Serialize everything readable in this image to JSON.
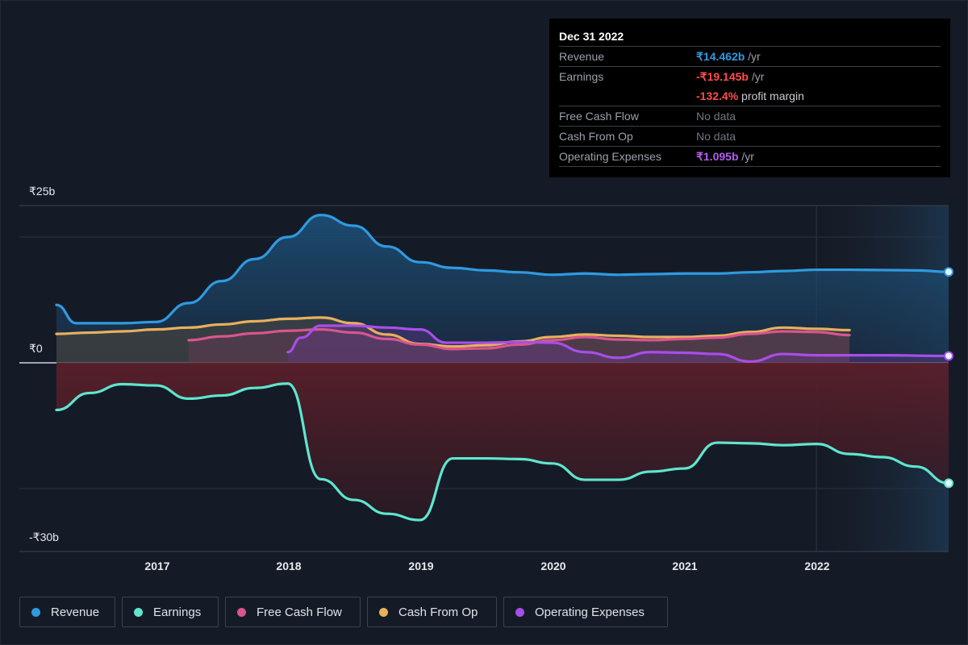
{
  "tooltip": {
    "date": "Dec 31 2022",
    "revenue_label": "Revenue",
    "revenue_value": "₹14.462b",
    "revenue_unit": " /yr",
    "earnings_label": "Earnings",
    "earnings_value": "-₹19.145b",
    "earnings_unit": " /yr",
    "margin_value": "-132.4%",
    "margin_text": " profit margin",
    "fcf_label": "Free Cash Flow",
    "fcf_value": "No data",
    "cfo_label": "Cash From Op",
    "cfo_value": "No data",
    "opex_label": "Operating Expenses",
    "opex_value": "₹1.095b",
    "opex_unit": " /yr"
  },
  "legend": {
    "revenue": "Revenue",
    "earnings": "Earnings",
    "fcf": "Free Cash Flow",
    "cfo": "Cash From Op",
    "opex": "Operating Expenses"
  },
  "colors": {
    "revenue": "#2f9ae0",
    "earnings": "#5ee6cf",
    "fcf": "#d9558e",
    "cfo": "#e8b05c",
    "opex": "#a84ee8",
    "revenue_text": "#2f9ae0",
    "negative_text": "#ff4d4d",
    "opex_text": "#b45cf0"
  },
  "chart_data": {
    "type": "line",
    "ylabels": [
      "₹25b",
      "₹0",
      "-₹30b"
    ],
    "xticks": [
      "2017",
      "2018",
      "2019",
      "2020",
      "2021",
      "2022"
    ],
    "ylim": [
      -30,
      25
    ],
    "xlim": [
      2016.25,
      2023.0
    ],
    "forecast_from": 2022.0,
    "series": [
      {
        "name": "Revenue",
        "key": "revenue",
        "points": [
          [
            2016.25,
            9.2
          ],
          [
            2016.4,
            6.3
          ],
          [
            2016.75,
            6.3
          ],
          [
            2017.0,
            6.5
          ],
          [
            2017.25,
            9.5
          ],
          [
            2017.5,
            13
          ],
          [
            2017.75,
            16.5
          ],
          [
            2018.0,
            20
          ],
          [
            2018.25,
            23.5
          ],
          [
            2018.5,
            21.8
          ],
          [
            2018.75,
            18.5
          ],
          [
            2019.0,
            16
          ],
          [
            2019.25,
            15.1
          ],
          [
            2019.5,
            14.7
          ],
          [
            2019.75,
            14.4
          ],
          [
            2020.0,
            14
          ],
          [
            2020.25,
            14.2
          ],
          [
            2020.5,
            14
          ],
          [
            2020.75,
            14.1
          ],
          [
            2021.0,
            14.2
          ],
          [
            2021.25,
            14.2
          ],
          [
            2021.5,
            14.4
          ],
          [
            2021.75,
            14.6
          ],
          [
            2022.0,
            14.8
          ],
          [
            2022.25,
            14.8
          ],
          [
            2022.5,
            14.75
          ],
          [
            2022.75,
            14.7
          ],
          [
            2023.0,
            14.462
          ]
        ]
      },
      {
        "name": "Earnings",
        "key": "earnings",
        "points": [
          [
            2016.25,
            -7.5
          ],
          [
            2016.5,
            -4.8
          ],
          [
            2016.75,
            -3.4
          ],
          [
            2017.0,
            -3.6
          ],
          [
            2017.25,
            -5.7
          ],
          [
            2017.5,
            -5.2
          ],
          [
            2017.75,
            -4
          ],
          [
            2018.0,
            -3.3
          ],
          [
            2018.25,
            -18.5
          ],
          [
            2018.5,
            -21.8
          ],
          [
            2018.75,
            -24
          ],
          [
            2019.0,
            -25
          ],
          [
            2019.25,
            -15.2
          ],
          [
            2019.5,
            -15.2
          ],
          [
            2019.75,
            -15.3
          ],
          [
            2020.0,
            -16
          ],
          [
            2020.25,
            -18.6
          ],
          [
            2020.5,
            -18.6
          ],
          [
            2020.75,
            -17.3
          ],
          [
            2021.0,
            -16.8
          ],
          [
            2021.25,
            -12.7
          ],
          [
            2021.5,
            -12.8
          ],
          [
            2021.75,
            -13.1
          ],
          [
            2022.0,
            -12.9
          ],
          [
            2022.25,
            -14.5
          ],
          [
            2022.5,
            -15
          ],
          [
            2022.75,
            -16.5
          ],
          [
            2023.0,
            -19.145
          ]
        ]
      },
      {
        "name": "Free Cash Flow",
        "key": "fcf",
        "points": [
          [
            2017.25,
            3.6
          ],
          [
            2017.5,
            4.2
          ],
          [
            2017.75,
            4.7
          ],
          [
            2018.0,
            5.1
          ],
          [
            2018.25,
            5.3
          ],
          [
            2018.5,
            4.8
          ],
          [
            2018.75,
            3.8
          ],
          [
            2019.0,
            2.9
          ],
          [
            2019.25,
            2.2
          ],
          [
            2019.5,
            2.3
          ],
          [
            2019.75,
            2.9
          ],
          [
            2020.0,
            3.6
          ],
          [
            2020.25,
            4.1
          ],
          [
            2020.5,
            3.7
          ],
          [
            2020.75,
            3.6
          ],
          [
            2021.0,
            3.8
          ],
          [
            2021.25,
            4
          ],
          [
            2021.5,
            4.6
          ],
          [
            2021.75,
            5
          ],
          [
            2022.0,
            4.9
          ],
          [
            2022.25,
            4.4
          ]
        ]
      },
      {
        "name": "Cash From Op",
        "key": "cfo",
        "points": [
          [
            2016.25,
            4.6
          ],
          [
            2016.5,
            4.8
          ],
          [
            2016.75,
            5.0
          ],
          [
            2017.0,
            5.3
          ],
          [
            2017.25,
            5.6
          ],
          [
            2017.5,
            6.1
          ],
          [
            2017.75,
            6.6
          ],
          [
            2018.0,
            7.0
          ],
          [
            2018.25,
            7.2
          ],
          [
            2018.5,
            6.3
          ],
          [
            2018.75,
            4.5
          ],
          [
            2019.0,
            3.0
          ],
          [
            2019.25,
            2.6
          ],
          [
            2019.5,
            2.8
          ],
          [
            2019.75,
            3.4
          ],
          [
            2020.0,
            4.1
          ],
          [
            2020.25,
            4.5
          ],
          [
            2020.5,
            4.3
          ],
          [
            2020.75,
            4.1
          ],
          [
            2021.0,
            4.1
          ],
          [
            2021.25,
            4.3
          ],
          [
            2021.5,
            4.9
          ],
          [
            2021.75,
            5.6
          ],
          [
            2022.0,
            5.4
          ],
          [
            2022.25,
            5.2
          ]
        ]
      },
      {
        "name": "Operating Expenses",
        "key": "opex",
        "points": [
          [
            2018.0,
            1.7
          ],
          [
            2018.1,
            4.0
          ],
          [
            2018.25,
            5.9
          ],
          [
            2018.5,
            5.9
          ],
          [
            2018.75,
            5.6
          ],
          [
            2019.0,
            5.3
          ],
          [
            2019.2,
            3.2
          ],
          [
            2019.5,
            3.2
          ],
          [
            2019.75,
            3.3
          ],
          [
            2020.0,
            3.2
          ],
          [
            2020.25,
            1.7
          ],
          [
            2020.5,
            0.8
          ],
          [
            2020.75,
            1.7
          ],
          [
            2021.0,
            1.6
          ],
          [
            2021.25,
            1.4
          ],
          [
            2021.5,
            0.2
          ],
          [
            2021.75,
            1.4
          ],
          [
            2022.0,
            1.2
          ],
          [
            2022.5,
            1.2
          ],
          [
            2023.0,
            1.095
          ]
        ]
      }
    ]
  }
}
